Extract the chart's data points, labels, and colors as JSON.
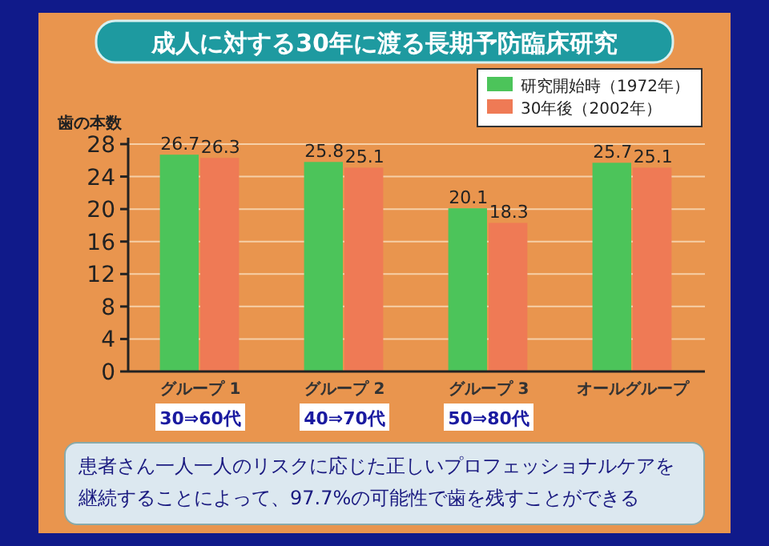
{
  "chart_data": {
    "type": "bar",
    "title": "成人に対する30年に渡る長期予防臨床研究",
    "ylabel": "歯の本数",
    "categories": [
      "グループ 1",
      "グループ 2",
      "グループ 3",
      "オールグループ"
    ],
    "series": [
      {
        "name": "研究開始時（1972年）",
        "color": "#4cc45a",
        "values": [
          26.7,
          25.8,
          20.1,
          25.7
        ]
      },
      {
        "name": "30年後（2002年）",
        "color": "#ef7a55",
        "values": [
          26.3,
          25.1,
          18.3,
          25.1
        ]
      }
    ],
    "ylim": [
      0,
      28
    ],
    "yticks": [
      0,
      4,
      8,
      12,
      16,
      20,
      24,
      28
    ],
    "grid": "y",
    "legend": "top right",
    "data_labels": true,
    "annotations": [
      "30⇒60代",
      "40⇒70代",
      "50⇒80代",
      "患者さん一人一人のリスクに応じた正しいプロフェッショナルケアを継続することによって、97.7%の可能性で歯を残すことができる"
    ]
  }
}
